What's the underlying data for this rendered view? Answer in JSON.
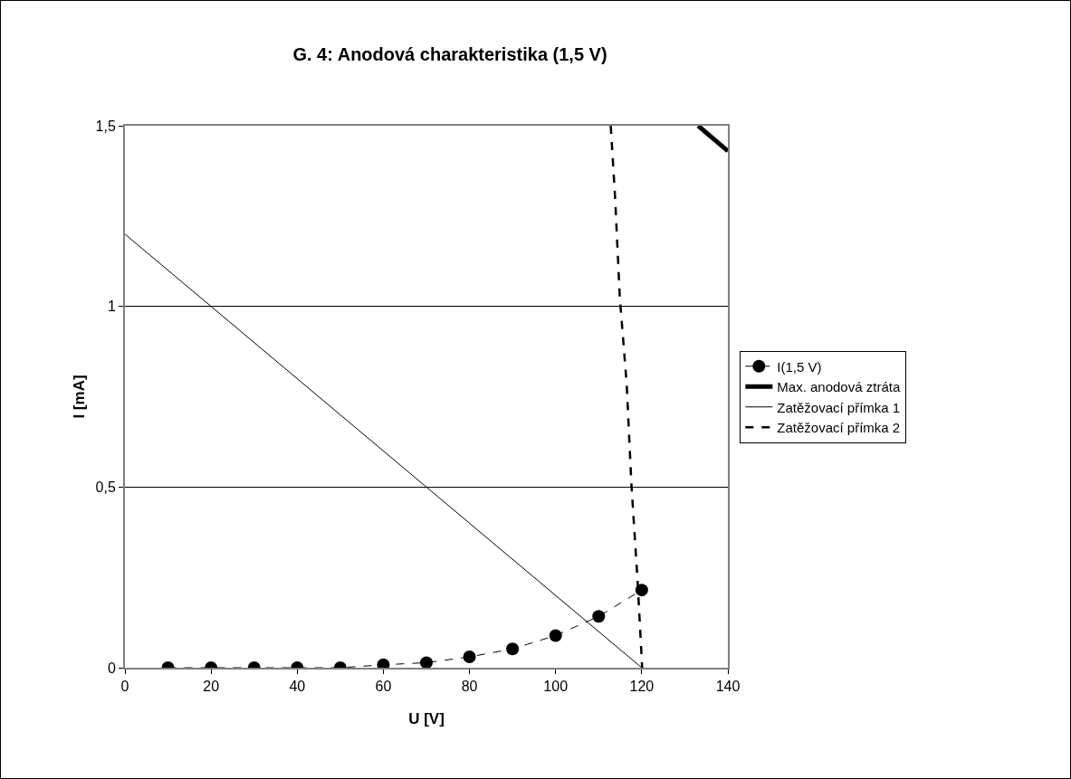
{
  "chart_data": {
    "type": "line",
    "title": "G. 4: Anodová charakteristika (1,5 V)",
    "xlabel": "U [V]",
    "ylabel": "I [mA]",
    "xlim": [
      0,
      140
    ],
    "xticks": [
      0,
      20,
      40,
      60,
      80,
      100,
      120,
      140
    ],
    "ylim": [
      0,
      1.5
    ],
    "yticks": [
      0,
      {
        "value": 0.5,
        "label": "0,5"
      },
      1,
      {
        "value": 1.5,
        "label": "1,5"
      }
    ],
    "grid": "y",
    "legend": "right",
    "series": [
      {
        "name": "I(1,5 V)",
        "color": "#000000",
        "marker": "circle",
        "line_style": "dashed",
        "x": [
          10,
          20,
          30,
          40,
          50,
          60,
          70,
          80,
          90,
          100,
          110,
          120
        ],
        "values": [
          0,
          0,
          0,
          0,
          0,
          0.008,
          0.014,
          0.03,
          0.052,
          0.089,
          0.142,
          0.215
        ]
      },
      {
        "name": "Max. anodová ztráta",
        "color": "#000000",
        "marker": "none",
        "line_style": "solid",
        "x": [
          133.1,
          140
        ],
        "values": [
          1.5,
          1.43
        ]
      },
      {
        "name": "Zatěžovací přímka 1",
        "color": "#000000",
        "marker": "none",
        "line_style": "solid",
        "x": [
          0,
          120
        ],
        "values": [
          1.2,
          0
        ]
      },
      {
        "name": "Zatěžovací přímka 2",
        "color": "#000000",
        "marker": "none",
        "line_style": "dashed",
        "x": [
          112.8,
          113.8,
          114.9,
          116.5,
          117.6,
          119.0,
          120.1
        ],
        "values": [
          1.5,
          1.305,
          1.026,
          0.786,
          0.507,
          0.247,
          0
        ]
      }
    ]
  }
}
